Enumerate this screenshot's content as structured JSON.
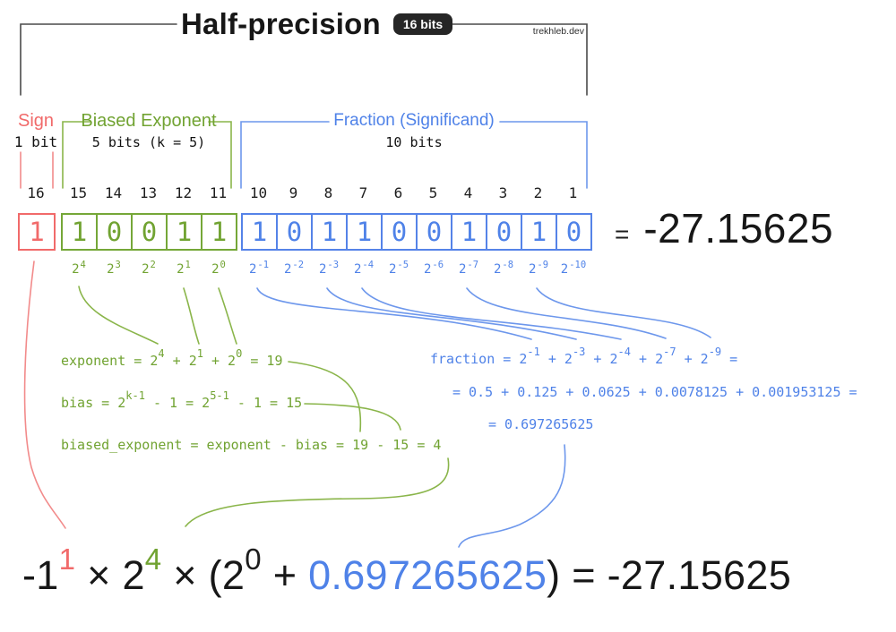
{
  "title": {
    "text": "Half-precision",
    "badge": "16 bits"
  },
  "watermark": "trekhleb.dev",
  "sections": {
    "sign": {
      "label": "Sign",
      "sublabel": "1 bit"
    },
    "exponent": {
      "label": "Biased Exponent",
      "sublabel": "5 bits (k = 5)"
    },
    "fraction": {
      "label": "Fraction (Significand)",
      "sublabel": "10 bits"
    }
  },
  "bits": {
    "indices": [
      "16",
      "15",
      "14",
      "13",
      "12",
      "11",
      "10",
      "9",
      "8",
      "7",
      "6",
      "5",
      "4",
      "3",
      "2",
      "1"
    ],
    "sign": [
      "1"
    ],
    "exponent": [
      "1",
      "0",
      "0",
      "1",
      "1"
    ],
    "fraction": [
      "1",
      "0",
      "1",
      "1",
      "0",
      "0",
      "1",
      "0",
      "1",
      "0"
    ]
  },
  "powers": {
    "base": "2",
    "exponent": [
      "4",
      "3",
      "2",
      "1",
      "0"
    ],
    "fraction": [
      "-1",
      "-2",
      "-3",
      "-4",
      "-5",
      "-6",
      "-7",
      "-8",
      "-9",
      "-10"
    ]
  },
  "result": {
    "equals": "=",
    "value": "-27.15625"
  },
  "formulas": {
    "exponent": [
      {
        "t": "exponent = 2"
      },
      {
        "sup": "4"
      },
      {
        "t": " + 2"
      },
      {
        "sup": "1"
      },
      {
        "t": " + 2"
      },
      {
        "sup": "0"
      },
      {
        "t": " = 19"
      }
    ],
    "bias": [
      {
        "t": "bias = 2"
      },
      {
        "sup": "k-1"
      },
      {
        "t": " - 1 = 2"
      },
      {
        "sup": "5-1"
      },
      {
        "t": " - 1 = 15"
      }
    ],
    "biased_exponent": [
      {
        "t": "biased_exponent = exponent - bias = 19 - 15 = 4"
      }
    ],
    "fraction_line1": [
      {
        "t": "fraction = 2"
      },
      {
        "sup": "-1"
      },
      {
        "t": " + 2"
      },
      {
        "sup": "-3"
      },
      {
        "t": " + 2"
      },
      {
        "sup": "-4"
      },
      {
        "t": " + 2"
      },
      {
        "sup": "-7"
      },
      {
        "t": " + 2"
      },
      {
        "sup": "-9"
      },
      {
        "t": " ="
      }
    ],
    "fraction_line2": [
      {
        "t": "= 0.5 + 0.125 + 0.0625 + 0.0078125 + 0.001953125 ="
      }
    ],
    "fraction_line3": [
      {
        "t": "= 0.697265625"
      }
    ]
  },
  "equation": [
    {
      "t": "-1"
    },
    {
      "sup": "1",
      "c": "red"
    },
    {
      "t": " × 2"
    },
    {
      "sup": "4",
      "c": "green"
    },
    {
      "t": " × (2"
    },
    {
      "sup": "0",
      "c": "dark"
    },
    {
      "t": " + "
    },
    {
      "t": "0.697265625",
      "c": "blue"
    },
    {
      "t": ") = -27.15625"
    }
  ],
  "colors": {
    "red": "#f16a6a",
    "green": "#71a332",
    "blue": "#4f82e8",
    "dark": "#1d1d1d"
  }
}
